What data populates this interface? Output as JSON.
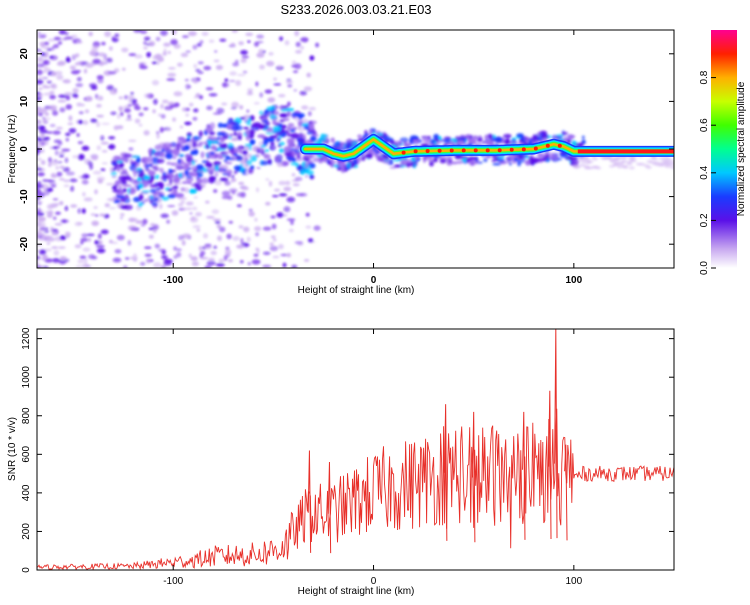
{
  "title": "S233.2026.003.03.21.E03",
  "chart_data": [
    {
      "type": "heatmap",
      "name": "spectrogram",
      "xlabel": "Height of straight line (km)",
      "ylabel": "Frequency (Hz)",
      "xlim": [
        -168,
        150
      ],
      "ylim": [
        -25,
        25
      ],
      "x_ticks": [
        -100,
        0,
        100
      ],
      "x_tick_labels": [
        "-100",
        "0",
        "100"
      ],
      "y_ticks": [
        20,
        10,
        0,
        -10,
        -20
      ],
      "y_tick_labels": [
        "20",
        "10",
        "0",
        "-10",
        "-20"
      ],
      "track": {
        "x": [
          -120,
          -110,
          -100,
          -90,
          -80,
          -70,
          -60,
          -50,
          -40,
          -34,
          -25,
          -20,
          -15,
          -10,
          -5,
          0,
          5,
          10,
          20,
          40,
          60,
          80,
          90,
          95,
          100,
          150
        ],
        "y": [
          -7,
          -6,
          -4,
          -3,
          -1,
          0,
          2,
          3.5,
          3,
          0,
          0,
          -1,
          -1.5,
          -1,
          0.5,
          2,
          0.5,
          -1,
          -0.5,
          -0.3,
          -0.3,
          0,
          1,
          0.5,
          -0.5,
          -0.5
        ]
      },
      "colorbar": {
        "label": "Normalized spectral amplitude",
        "range": [
          0,
          1
        ],
        "ticks": [
          0.0,
          0.2,
          0.4,
          0.6,
          0.8
        ],
        "tick_labels": [
          "0.0",
          "0.2",
          "0.4",
          "0.6",
          "0.8"
        ]
      }
    },
    {
      "type": "line",
      "name": "snr",
      "xlabel": "Height of straight line (km)",
      "ylabel": "SNR (10 * v/v)",
      "xlim": [
        -168,
        150
      ],
      "ylim": [
        0,
        1250
      ],
      "x_ticks": [
        -100,
        0,
        100
      ],
      "x_tick_labels": [
        "-100",
        "0",
        "100"
      ],
      "y_ticks": [
        0,
        200,
        400,
        600,
        800,
        1000,
        1200
      ],
      "y_tick_labels": [
        "0",
        "200",
        "400",
        "600",
        "800",
        "1000",
        "1200"
      ],
      "series": [
        {
          "name": "SNR",
          "color": "#e8302a",
          "envelope": {
            "x": [
              -168,
              -120,
              -110,
              -90,
              -80,
              -60,
              -50,
              -42,
              -36,
              -30,
              -25,
              -20,
              -10,
              0,
              10,
              20,
              30,
              40,
              50,
              60,
              70,
              75,
              80,
              85,
              90,
              95,
              100,
              105,
              150
            ],
            "y": [
              15,
              20,
              30,
              50,
              70,
              80,
              100,
              150,
              250,
              320,
              280,
              300,
              350,
              400,
              430,
              450,
              480,
              520,
              480,
              500,
              480,
              520,
              560,
              500,
              560,
              520,
              480,
              500,
              500
            ]
          },
          "spikes": [
            {
              "x": -32,
              "y": 620
            },
            {
              "x": -22,
              "y": 560
            },
            {
              "x": 36,
              "y": 860
            },
            {
              "x": 50,
              "y": 820
            },
            {
              "x": 75,
              "y": 820
            },
            {
              "x": 88,
              "y": 930
            },
            {
              "x": 91,
              "y": 1250
            },
            {
              "x": 96,
              "y": 650
            }
          ]
        }
      ]
    }
  ]
}
